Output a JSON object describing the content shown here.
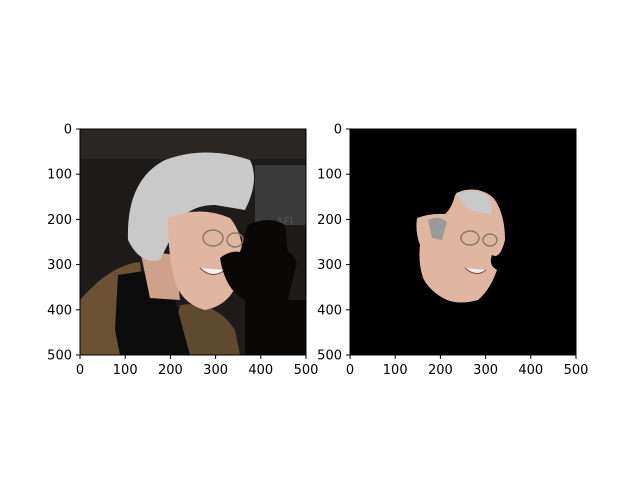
{
  "figure": {
    "background": "#ffffff"
  },
  "chart_data": [
    {
      "type": "image",
      "image_description_semantic": "photo",
      "xlim": [
        0,
        500
      ],
      "ylim": [
        500,
        0
      ],
      "xticks": [
        0,
        100,
        200,
        300,
        400,
        500
      ],
      "yticks": [
        0,
        100,
        200,
        300,
        400,
        500
      ],
      "xtick_labels": [
        "0",
        "100",
        "200",
        "300",
        "400",
        "500"
      ],
      "ytick_labels": [
        "0",
        "100",
        "200",
        "300",
        "400",
        "500"
      ],
      "xlabel": "",
      "ylabel": "",
      "title": ""
    },
    {
      "type": "image",
      "image_description_semantic": "masked-face",
      "xlim": [
        0,
        500
      ],
      "ylim": [
        500,
        0
      ],
      "xticks": [
        0,
        100,
        200,
        300,
        400,
        500
      ],
      "yticks": [
        0,
        100,
        200,
        300,
        400,
        500
      ],
      "xtick_labels": [
        "0",
        "100",
        "200",
        "300",
        "400",
        "500"
      ],
      "ytick_labels": [
        "0",
        "100",
        "200",
        "300",
        "400",
        "500"
      ],
      "xlabel": "",
      "ylabel": "",
      "title": ""
    }
  ],
  "colors": {
    "background_dark": "#1f1d1b",
    "hair": "#c9c9c9",
    "skin": "#e0b6a0",
    "jacket": "#6b5232",
    "shirt": "#0c0c0c",
    "occluder": "#0a0807",
    "mask_background": "#000000"
  }
}
